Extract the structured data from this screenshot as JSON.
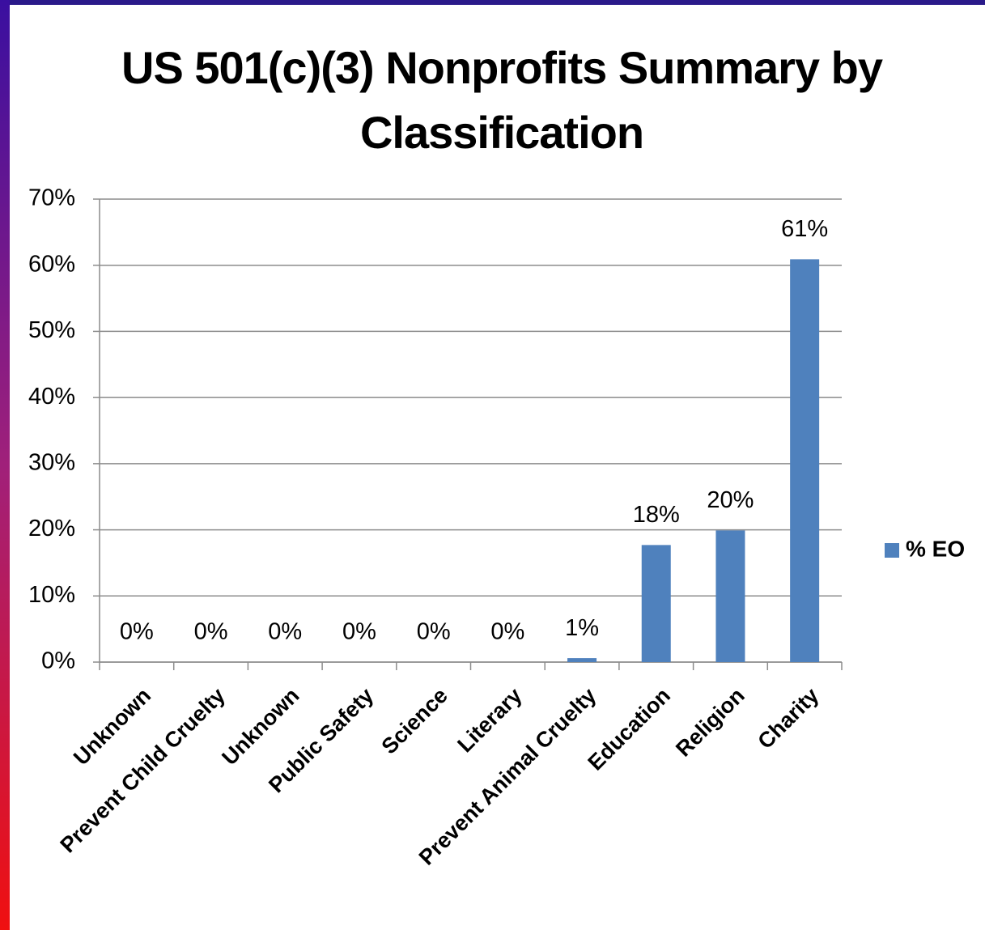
{
  "chart_data": {
    "type": "bar",
    "title": "US 501(c)(3) Nonprofits Summary by Classification",
    "categories": [
      "Unknown",
      "Prevent Child Cruelty",
      "Unknown",
      "Public Safety",
      "Science",
      "Literary",
      "Prevent Animal Cruelty",
      "Education",
      "Religion",
      "Charity"
    ],
    "series": [
      {
        "name": "% EO",
        "color": "#4f81bd",
        "values": [
          0,
          0,
          0,
          0,
          0,
          0,
          0.6,
          17.7,
          19.9,
          60.9
        ],
        "value_labels": [
          "0%",
          "0%",
          "0%",
          "0%",
          "0%",
          "0%",
          "1%",
          "18%",
          "20%",
          "61%"
        ]
      }
    ],
    "ylim": [
      0,
      70
    ],
    "yticks": [
      {
        "value": 0,
        "label": "0%"
      },
      {
        "value": 10,
        "label": "10%"
      },
      {
        "value": 20,
        "label": "20%"
      },
      {
        "value": 30,
        "label": "30%"
      },
      {
        "value": 40,
        "label": "40%"
      },
      {
        "value": 50,
        "label": "50%"
      },
      {
        "value": 60,
        "label": "60%"
      },
      {
        "value": 70,
        "label": "70%"
      }
    ],
    "grid": true,
    "legend": "right"
  }
}
